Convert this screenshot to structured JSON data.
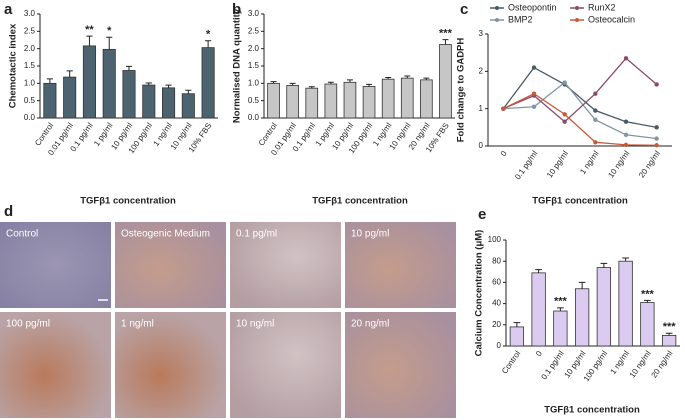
{
  "chart_data": [
    {
      "type": "bar",
      "label": "a",
      "ylabel": "Chemotactic index",
      "xlabel": "TGFβ1 concentration",
      "color": "#4d6470",
      "categories": [
        "Control",
        "0.01 pg/ml",
        "0.1 pg/ml",
        "1 pg/ml",
        "10 pg/ml",
        "100 pg/ml",
        "1 ng/ml",
        "10 ng/ml",
        "10% FBS"
      ],
      "values": [
        1.0,
        1.18,
        2.08,
        1.98,
        1.37,
        0.95,
        0.87,
        0.7,
        2.03
      ],
      "errors": [
        0.13,
        0.18,
        0.28,
        0.35,
        0.12,
        0.06,
        0.08,
        0.1,
        0.2
      ],
      "annotations": [
        null,
        null,
        "**",
        "*",
        null,
        null,
        null,
        null,
        "*"
      ],
      "ylim": [
        0,
        3
      ],
      "yticks": [
        {
          "value": 0,
          "label": "0.0"
        },
        {
          "value": 0.5,
          "label": "0.5"
        },
        {
          "value": 1,
          "label": "1.0"
        },
        {
          "value": 1.5,
          "label": "1.5"
        },
        {
          "value": 2,
          "label": "2.0"
        },
        {
          "value": 2.5,
          "label": "2.5"
        },
        {
          "value": 3,
          "label": "3.0"
        }
      ]
    },
    {
      "type": "bar",
      "label": "b",
      "ylabel": "Normalised DNA quantity",
      "xlabel": "TGFβ1 concentration",
      "color": "#c6c6c6",
      "categories": [
        "Control",
        "0.01 pg/ml",
        "0.1 pg/ml",
        "1 pg/ml",
        "10 pg/ml",
        "100 pg/ml",
        "1 ng/ml",
        "10 ng/ml",
        "20 ng/ml",
        "10% FBS"
      ],
      "values": [
        1.0,
        0.94,
        0.86,
        0.98,
        1.03,
        0.91,
        1.12,
        1.15,
        1.1,
        2.12
      ],
      "errors": [
        0.05,
        0.06,
        0.04,
        0.05,
        0.07,
        0.06,
        0.05,
        0.06,
        0.05,
        0.14
      ],
      "annotations": [
        null,
        null,
        null,
        null,
        null,
        null,
        null,
        null,
        null,
        "***"
      ],
      "ylim": [
        0,
        3
      ],
      "yticks": [
        {
          "value": 0,
          "label": "0.0"
        },
        {
          "value": 0.5,
          "label": "0.5"
        },
        {
          "value": 1,
          "label": "1.0"
        },
        {
          "value": 1.5,
          "label": "1.5"
        },
        {
          "value": 2,
          "label": "2.0"
        },
        {
          "value": 2.5,
          "label": "2.5"
        },
        {
          "value": 3,
          "label": "3.0"
        }
      ]
    },
    {
      "type": "line",
      "label": "c",
      "ylabel": "Fold change to GADPH",
      "xlabel": "TGFβ1 concentration",
      "categories": [
        "0",
        "0.1 pg/ml",
        "10 pg/ml",
        "1 ng/ml",
        "10 ng/ml",
        "20 ng/ml"
      ],
      "series": [
        {
          "name": "Osteopontin",
          "color": "#4a5a66",
          "values": [
            1.0,
            2.1,
            1.65,
            0.95,
            0.65,
            0.5
          ]
        },
        {
          "name": "BMP2",
          "color": "#7f96a3",
          "values": [
            1.0,
            1.05,
            1.7,
            0.7,
            0.3,
            0.2
          ]
        },
        {
          "name": "RunX2",
          "color": "#8a4a6a",
          "values": [
            1.0,
            1.35,
            0.65,
            1.4,
            2.35,
            1.65
          ]
        },
        {
          "name": "Osteocalcin",
          "color": "#c85a3a",
          "values": [
            1.0,
            1.4,
            0.85,
            0.1,
            0.03,
            0.02
          ]
        }
      ],
      "ylim": [
        0,
        3
      ],
      "yticks": [
        0,
        1,
        2,
        3
      ]
    },
    {
      "type": "bar",
      "label": "e",
      "ylabel": "Calcium Concentration (μM)",
      "xlabel": "TGFβ1 concentration",
      "color": "#dccbf0",
      "categories": [
        "Control",
        "0",
        "0.1 pg/ml",
        "10 pg/ml",
        "100 pg/ml",
        "1 ng/ml",
        "10 ng/ml",
        "20 ng/ml"
      ],
      "values": [
        18,
        69,
        33,
        54,
        74,
        80,
        41,
        10
      ],
      "errors": [
        4,
        3,
        3,
        6,
        4,
        3,
        2,
        2
      ],
      "annotations": [
        null,
        null,
        "***",
        null,
        null,
        null,
        "***",
        "***"
      ],
      "ylim": [
        0,
        100
      ],
      "yticks": [
        0,
        20,
        40,
        60,
        80,
        100
      ]
    }
  ],
  "image_grid": {
    "label": "d",
    "tiles": [
      "Control",
      "Osteogenic Medium",
      "0.1 pg/ml",
      "10 pg/ml",
      "100 pg/ml",
      "1 ng/ml",
      "10 ng/ml",
      "20 ng/ml"
    ]
  }
}
